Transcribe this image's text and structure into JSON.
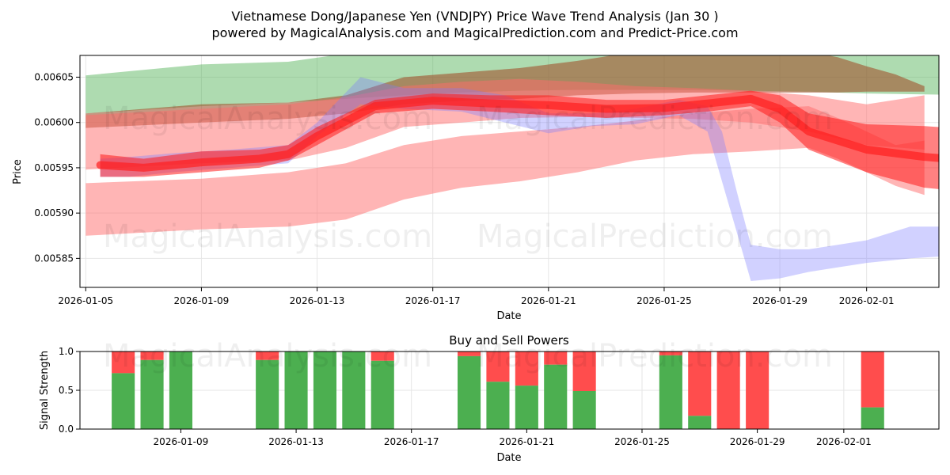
{
  "chart_data": [
    {
      "type": "area",
      "title": "Vietnamese Dong/Japanese Yen (VNDJPY) Price Wave Trend Analysis (Jan 30 )",
      "subtitle": "powered by MagicalAnalysis.com and MagicalPrediction.com and Predict-Price.com",
      "xlabel": "Date",
      "ylabel": "Price",
      "xlim": [
        "2026-01-04.8",
        "2026-02-04.0"
      ],
      "ylim": [
        0.005818,
        0.006074
      ],
      "x_ticks": [
        "2026-01-05",
        "2026-01-09",
        "2026-01-13",
        "2026-01-17",
        "2026-01-21",
        "2026-01-25",
        "2026-01-29",
        "2026-02-01"
      ],
      "y_ticks": [
        "0.00585",
        "0.00590",
        "0.00595",
        "0.00600",
        "0.00605"
      ],
      "grid": true,
      "watermarks": [
        "MagicalAnalysis.com",
        "MagicalPrediction.com"
      ],
      "series": [
        {
          "name": "green band",
          "color": "#4caf50",
          "opacity": 0.45,
          "x": [
            0,
            4,
            7,
            9,
            11,
            13,
            15,
            17,
            19,
            21,
            23,
            25,
            27,
            29,
            31,
            32
          ],
          "upper": [
            0.006052,
            0.006064,
            0.006067,
            0.006076,
            0.006085,
            0.006088,
            0.00609,
            0.00609,
            0.00609,
            0.00609,
            0.006088,
            0.006086,
            0.006082,
            0.006078,
            0.006076,
            0.006076
          ],
          "lower": [
            0.00601,
            0.006018,
            0.006022,
            0.006026,
            0.00603,
            0.006033,
            0.006035,
            0.006036,
            0.006036,
            0.006036,
            0.006035,
            0.006034,
            0.006032,
            0.006031,
            0.00603,
            0.006026
          ]
        },
        {
          "name": "brown band",
          "color": "#a0522d",
          "opacity": 0.6,
          "x": [
            0,
            4,
            7,
            9,
            11,
            13,
            15,
            17,
            19,
            21,
            23,
            25,
            26,
            27,
            28,
            29
          ],
          "upper": [
            0.00601,
            0.00602,
            0.006022,
            0.00603,
            0.00605,
            0.006055,
            0.00606,
            0.006068,
            0.006078,
            0.00608,
            0.00608,
            0.006078,
            0.006072,
            0.006062,
            0.006053,
            0.00604
          ],
          "lower": [
            0.005994,
            0.006,
            0.006004,
            0.00601,
            0.00602,
            0.006024,
            0.006026,
            0.00603,
            0.006032,
            0.006033,
            0.006033,
            0.006033,
            0.006033,
            0.006034,
            0.006034,
            0.006034
          ],
          "x_end": 29
        },
        {
          "name": "wide pink upper band",
          "color": "#ff6b6b",
          "opacity": 0.5,
          "x": [
            0,
            4,
            7,
            9,
            11,
            13,
            15,
            17,
            19,
            21,
            23,
            25,
            27,
            29
          ],
          "upper": [
            0.006008,
            0.006015,
            0.00602,
            0.006028,
            0.00604,
            0.006045,
            0.006048,
            0.006045,
            0.00604,
            0.006038,
            0.006035,
            0.00603,
            0.00602,
            0.00603
          ],
          "lower": [
            0.005948,
            0.005955,
            0.005958,
            0.005972,
            0.005995,
            0.006,
            0.006005,
            0.006006,
            0.006005,
            0.006004,
            0.006,
            0.00599,
            0.005975,
            0.00597
          ]
        },
        {
          "name": "wide pink lower band",
          "color": "#ff6b6b",
          "opacity": 0.5,
          "x": [
            0,
            4,
            7,
            9,
            11,
            13,
            15,
            17,
            19,
            21,
            23,
            25,
            26,
            27,
            28,
            29
          ],
          "upper": [
            0.005933,
            0.005938,
            0.005945,
            0.005955,
            0.005975,
            0.005985,
            0.00599,
            0.005995,
            0.006002,
            0.00601,
            0.006015,
            0.006018,
            0.006005,
            0.00599,
            0.005975,
            0.00598
          ],
          "lower": [
            0.005875,
            0.005882,
            0.005885,
            0.005893,
            0.005915,
            0.005928,
            0.005935,
            0.005945,
            0.005958,
            0.005965,
            0.005968,
            0.005972,
            0.00596,
            0.005945,
            0.00593,
            0.00592
          ]
        },
        {
          "name": "blue forecast band",
          "color": "#7b7bff",
          "opacity": 0.35,
          "x": [
            0.5,
            1.5,
            3,
            5,
            7,
            8,
            9.5,
            11,
            13,
            14.5,
            16,
            17.5,
            19,
            20.5,
            21.5,
            22,
            22.5,
            23,
            24,
            25,
            26,
            27,
            28.5,
            29.5,
            31
          ],
          "upper": [
            0.00596,
            0.005962,
            0.005966,
            0.00597,
            0.005975,
            0.006,
            0.00605,
            0.006038,
            0.006038,
            0.00603,
            0.00601,
            0.00601,
            0.006015,
            0.006025,
            0.006018,
            0.00599,
            0.005925,
            0.005865,
            0.00586,
            0.00586,
            0.005865,
            0.00587,
            0.005885,
            0.005885,
            0.005885
          ],
          "lower": [
            0.00594,
            0.00594,
            0.005945,
            0.00595,
            0.005955,
            0.005985,
            0.00602,
            0.006015,
            0.006012,
            0.006,
            0.005988,
            0.005996,
            0.005998,
            0.006008,
            0.00599,
            0.005935,
            0.00588,
            0.005825,
            0.005828,
            0.005835,
            0.00584,
            0.005845,
            0.00585,
            0.005852,
            0.005855
          ]
        },
        {
          "name": "red core band",
          "color": "#ff1a1a",
          "opacity": 0.55,
          "x": [
            0.5,
            2,
            4,
            6,
            7,
            8,
            10,
            12,
            14,
            16,
            18,
            20,
            21.5,
            23,
            24,
            25,
            27,
            29,
            31
          ],
          "upper": [
            0.005965,
            0.00596,
            0.005968,
            0.00597,
            0.005975,
            0.005995,
            0.006025,
            0.006032,
            0.00603,
            0.00603,
            0.006025,
            0.006025,
            0.00603,
            0.006035,
            0.00603,
            0.00601,
            0.005998,
            0.005996,
            0.005992
          ],
          "lower": [
            0.00594,
            0.00594,
            0.005945,
            0.00595,
            0.005958,
            0.005975,
            0.00601,
            0.006015,
            0.006012,
            0.006008,
            0.006005,
            0.006008,
            0.006012,
            0.006018,
            0.006,
            0.00597,
            0.005945,
            0.005928,
            0.005922
          ]
        }
      ],
      "center_lines": [
        {
          "name": "red trend line",
          "color": "#ff2020",
          "opacity": 0.7,
          "width": 10,
          "x": [
            0.5,
            2,
            4,
            6,
            7,
            8,
            10,
            12,
            14,
            16,
            18,
            20,
            21.5,
            23,
            24,
            25,
            27,
            29,
            31
          ],
          "y": [
            0.005953,
            0.00595,
            0.005956,
            0.00596,
            0.005965,
            0.005985,
            0.006018,
            0.006024,
            0.006021,
            0.006019,
            0.006015,
            0.006016,
            0.006021,
            0.006026,
            0.006015,
            0.00599,
            0.00597,
            0.005962,
            0.005957
          ]
        }
      ]
    },
    {
      "type": "bar",
      "title": "Buy and Sell Powers",
      "xlabel": "Date",
      "ylabel": "Signal Strength",
      "xlim": [
        "2026-01-05.5",
        "2026-02-04.5"
      ],
      "ylim": [
        0,
        1
      ],
      "x_ticks": [
        "2026-01-09",
        "2026-01-13",
        "2026-01-17",
        "2026-01-21",
        "2026-01-25",
        "2026-01-29",
        "2026-02-01"
      ],
      "y_ticks": [
        "0.0",
        "0.5",
        "1.0"
      ],
      "buy_color": "#4caf50",
      "sell_color": "#ff4d4d",
      "bars": [
        {
          "date": "2026-01-07",
          "buy": 0.72
        },
        {
          "date": "2026-01-08",
          "buy": 0.89
        },
        {
          "date": "2026-01-09",
          "buy": 1.0
        },
        {
          "date": "2026-01-12",
          "buy": 0.89
        },
        {
          "date": "2026-01-13",
          "buy": 1.0
        },
        {
          "date": "2026-01-14",
          "buy": 1.0
        },
        {
          "date": "2026-01-15",
          "buy": 1.0
        },
        {
          "date": "2026-01-16",
          "buy": 0.88
        },
        {
          "date": "2026-01-19",
          "buy": 0.94
        },
        {
          "date": "2026-01-20",
          "buy": 0.61
        },
        {
          "date": "2026-01-21",
          "buy": 0.56
        },
        {
          "date": "2026-01-22",
          "buy": 0.83
        },
        {
          "date": "2026-01-23",
          "buy": 0.49
        },
        {
          "date": "2026-01-26",
          "buy": 0.95
        },
        {
          "date": "2026-01-27",
          "buy": 0.17
        },
        {
          "date": "2026-01-28",
          "buy": 0.0
        },
        {
          "date": "2026-01-29",
          "buy": 0.0
        },
        {
          "date": "2026-02-02",
          "buy": 0.28
        }
      ]
    }
  ]
}
